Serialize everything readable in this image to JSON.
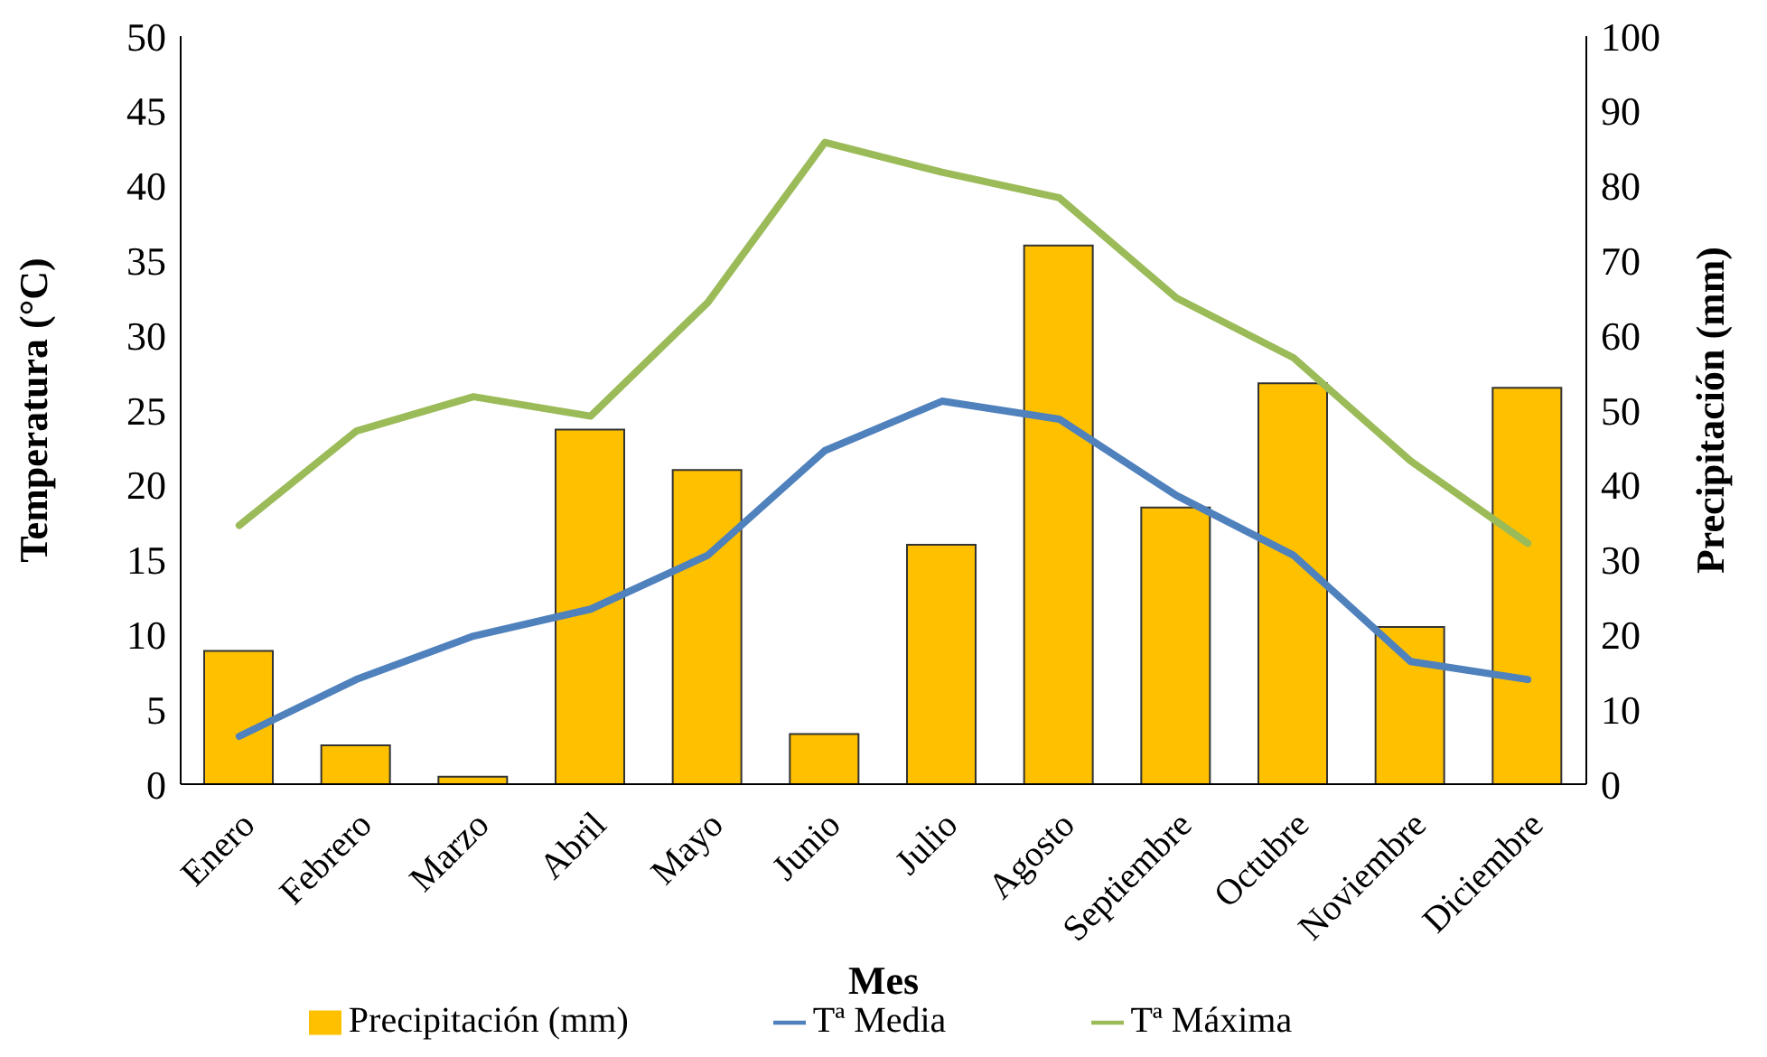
{
  "chart_data": {
    "type": "bar",
    "xlabel": "Mes",
    "ylabel": "Temperatura (°C)",
    "y2label": "Precipitación (mm)",
    "categories": [
      "Enero",
      "Febrero",
      "Marzo",
      "Abril",
      "Mayo",
      "Junio",
      "Julio",
      "Agosto",
      "Septiembre",
      "Octubre",
      "Noviembre",
      "Diciembre"
    ],
    "series": [
      {
        "name": "Precipitación (mm)",
        "axis": "y2",
        "color": "#ffc000",
        "values": [
          17.8,
          5.2,
          1,
          47.4,
          42,
          6.7,
          32,
          72,
          37,
          53.6,
          21,
          53
        ]
      },
      {
        "name": "Tª Media",
        "type": "line",
        "color": "#4f81bd",
        "values": [
          3.2,
          7.0,
          9.9,
          11.7,
          15.3,
          22.3,
          25.6,
          24.4,
          19.3,
          15.3,
          8.2,
          7.0
        ]
      },
      {
        "name": "Tª Máxima",
        "type": "line",
        "color": "#9bbb59",
        "values": [
          17.3,
          23.6,
          25.9,
          24.6,
          32.2,
          42.9,
          40.9,
          39.2,
          32.5,
          28.5,
          21.6,
          16.1
        ]
      }
    ],
    "ylim": [
      0,
      50
    ],
    "yticks": [
      0,
      5,
      10,
      15,
      20,
      25,
      30,
      35,
      40,
      45,
      50
    ],
    "y2lim": [
      0,
      100
    ],
    "y2ticks": [
      0,
      10,
      20,
      30,
      40,
      50,
      60,
      70,
      80,
      90,
      100
    ],
    "grid": false,
    "legend": "bottom",
    "marker": "none"
  }
}
